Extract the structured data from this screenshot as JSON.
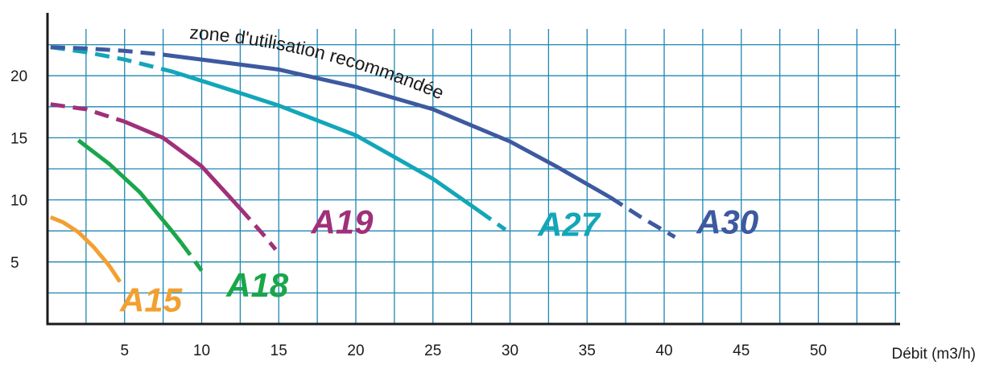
{
  "chart_data": {
    "type": "line",
    "xlabel": "Débit (m3/h)",
    "ylabel": "",
    "xlim": [
      0,
      55
    ],
    "ylim": [
      0,
      24
    ],
    "x_ticks": [
      5,
      10,
      15,
      20,
      25,
      30,
      35,
      40,
      45,
      50
    ],
    "y_ticks": [
      5,
      10,
      15,
      20
    ],
    "x_gridlines": [
      0,
      2.5,
      5,
      7.5,
      10,
      12.5,
      15,
      17.5,
      20,
      22.5,
      25,
      27.5,
      30,
      32.5,
      35,
      37.5,
      40,
      42.5,
      45,
      47.5,
      50,
      52.5,
      55
    ],
    "y_gridlines": [
      2.5,
      5,
      7.5,
      10,
      12.5,
      15,
      17.5,
      20,
      22.5
    ],
    "grid": true,
    "annotation": "zone d'utilisation recommandée",
    "series": [
      {
        "name": "A15",
        "color": "#f2a031",
        "dash_start": null,
        "solid_end": 4.7,
        "points": [
          [
            0.2,
            8.6
          ],
          [
            1,
            8.2
          ],
          [
            2,
            7.4
          ],
          [
            3,
            6.2
          ],
          [
            4,
            4.7
          ],
          [
            4.7,
            3.4
          ]
        ]
      },
      {
        "name": "A18",
        "color": "#1aa64a",
        "dash_start": 1.7,
        "solid_end": 8.7,
        "points": [
          [
            0.2,
            16
          ],
          [
            2,
            14.8
          ],
          [
            4,
            12.9
          ],
          [
            6,
            10.6
          ],
          [
            8,
            7.6
          ],
          [
            8.7,
            6.5
          ],
          [
            9.3,
            5.5
          ],
          [
            10,
            4.3
          ]
        ]
      },
      {
        "name": "A19",
        "color": "#a0307a",
        "dash_start": 5,
        "solid_end": 12.5,
        "points": [
          [
            0.2,
            17.7
          ],
          [
            2.5,
            17.3
          ],
          [
            5,
            16.3
          ],
          [
            7.5,
            15
          ],
          [
            10,
            12.7
          ],
          [
            12.5,
            9.3
          ],
          [
            14,
            7.2
          ],
          [
            14.8,
            6
          ]
        ]
      },
      {
        "name": "A27",
        "color": "#13a6b8",
        "dash_start": 8.2,
        "solid_end": 28,
        "points": [
          [
            0.2,
            22.3
          ],
          [
            2.5,
            21.9
          ],
          [
            5,
            21.3
          ],
          [
            8.2,
            20.3
          ],
          [
            12.5,
            18.6
          ],
          [
            15,
            17.6
          ],
          [
            20,
            15.2
          ],
          [
            25,
            11.7
          ],
          [
            28,
            9.1
          ],
          [
            29.7,
            7.6
          ]
        ]
      },
      {
        "name": "A30",
        "color": "#3d5aa0",
        "dash_start": 7.5,
        "solid_end": 36.5,
        "points": [
          [
            0.2,
            22.3
          ],
          [
            2.5,
            22.2
          ],
          [
            5,
            22
          ],
          [
            7.5,
            21.7
          ],
          [
            10,
            21.3
          ],
          [
            15,
            20.5
          ],
          [
            20,
            19.1
          ],
          [
            25,
            17.3
          ],
          [
            30,
            14.7
          ],
          [
            33,
            12.7
          ],
          [
            36.5,
            10.2
          ],
          [
            38.5,
            8.6
          ],
          [
            40.7,
            7
          ]
        ]
      }
    ],
    "labels": [
      {
        "text": "A15",
        "color": "#f2a031",
        "x": 4.7,
        "y": 1.0
      },
      {
        "text": "A18",
        "color": "#1aa64a",
        "x": 11.6,
        "y": 2.2
      },
      {
        "text": "A19",
        "color": "#a0307a",
        "x": 17.1,
        "y": 7.3
      },
      {
        "text": "A27",
        "color": "#13a6b8",
        "x": 31.8,
        "y": 7.1
      },
      {
        "text": "A30",
        "color": "#3d5aa0",
        "x": 42.1,
        "y": 7.3
      }
    ]
  }
}
